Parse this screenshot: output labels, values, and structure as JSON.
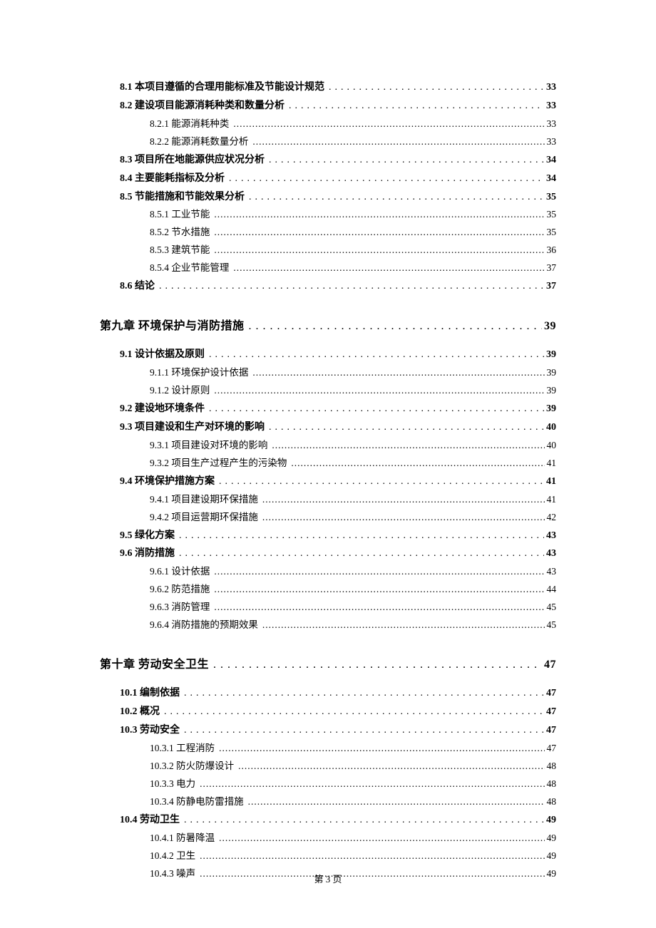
{
  "footer": "第 3 页",
  "entries": [
    {
      "level": 2,
      "title": "8.1 本项目遵循的合理用能标准及节能设计规范",
      "page": "33"
    },
    {
      "level": 2,
      "title": "8.2 建设项目能源消耗种类和数量分析",
      "page": "33"
    },
    {
      "level": 3,
      "title": "8.2.1 能源消耗种类",
      "page": "33"
    },
    {
      "level": 3,
      "title": "8.2.2 能源消耗数量分析",
      "page": "33"
    },
    {
      "level": 2,
      "title": "8.3 项目所在地能源供应状况分析",
      "page": "34"
    },
    {
      "level": 2,
      "title": "8.4 主要能耗指标及分析",
      "page": "34"
    },
    {
      "level": 2,
      "title": "8.5 节能措施和节能效果分析",
      "page": "35"
    },
    {
      "level": 3,
      "title": "8.5.1 工业节能",
      "page": "35"
    },
    {
      "level": 3,
      "title": "8.5.2 节水措施",
      "page": "35"
    },
    {
      "level": 3,
      "title": "8.5.3 建筑节能",
      "page": "36"
    },
    {
      "level": 3,
      "title": "8.5.4 企业节能管理",
      "page": "37"
    },
    {
      "level": 2,
      "title": "8.6 结论",
      "page": "37"
    },
    {
      "level": 1,
      "title": "第九章  环境保护与消防措施",
      "page": "39"
    },
    {
      "level": 2,
      "title": "9.1 设计依据及原则",
      "page": "39"
    },
    {
      "level": 3,
      "title": "9.1.1 环境保护设计依据",
      "page": "39"
    },
    {
      "level": 3,
      "title": "9.1.2 设计原则",
      "page": "39"
    },
    {
      "level": 2,
      "title": "9.2 建设地环境条件",
      "page": "39"
    },
    {
      "level": 2,
      "title": "9.3  项目建设和生产对环境的影响",
      "page": "40"
    },
    {
      "level": 3,
      "title": "9.3.1  项目建设对环境的影响",
      "page": "40"
    },
    {
      "level": 3,
      "title": "9.3.2  项目生产过程产生的污染物",
      "page": "41"
    },
    {
      "level": 2,
      "title": "9.4  环境保护措施方案",
      "page": "41"
    },
    {
      "level": 3,
      "title": "9.4.1  项目建设期环保措施",
      "page": "41"
    },
    {
      "level": 3,
      "title": "9.4.2  项目运营期环保措施",
      "page": "42"
    },
    {
      "level": 2,
      "title": "9.5 绿化方案",
      "page": "43"
    },
    {
      "level": 2,
      "title": "9.6 消防措施",
      "page": "43"
    },
    {
      "level": 3,
      "title": "9.6.1 设计依据",
      "page": "43"
    },
    {
      "level": 3,
      "title": "9.6.2 防范措施",
      "page": "44"
    },
    {
      "level": 3,
      "title": "9.6.3 消防管理",
      "page": "45"
    },
    {
      "level": 3,
      "title": "9.6.4 消防措施的预期效果",
      "page": "45"
    },
    {
      "level": 1,
      "title": "第十章  劳动安全卫生",
      "page": "47"
    },
    {
      "level": 2,
      "title": "10.1  编制依据",
      "page": "47"
    },
    {
      "level": 2,
      "title": "10.2 概况",
      "page": "47"
    },
    {
      "level": 2,
      "title": "10.3  劳动安全",
      "page": "47"
    },
    {
      "level": 3,
      "title": "10.3.1 工程消防",
      "page": "47"
    },
    {
      "level": 3,
      "title": "10.3.2 防火防爆设计",
      "page": "48"
    },
    {
      "level": 3,
      "title": "10.3.3 电力",
      "page": "48"
    },
    {
      "level": 3,
      "title": "10.3.4 防静电防雷措施",
      "page": "48"
    },
    {
      "level": 2,
      "title": "10.4 劳动卫生",
      "page": "49"
    },
    {
      "level": 3,
      "title": "10.4.1 防暑降温",
      "page": "49"
    },
    {
      "level": 3,
      "title": "10.4.2 卫生",
      "page": "49"
    },
    {
      "level": 3,
      "title": "10.4.3 噪声",
      "page": "49"
    }
  ]
}
